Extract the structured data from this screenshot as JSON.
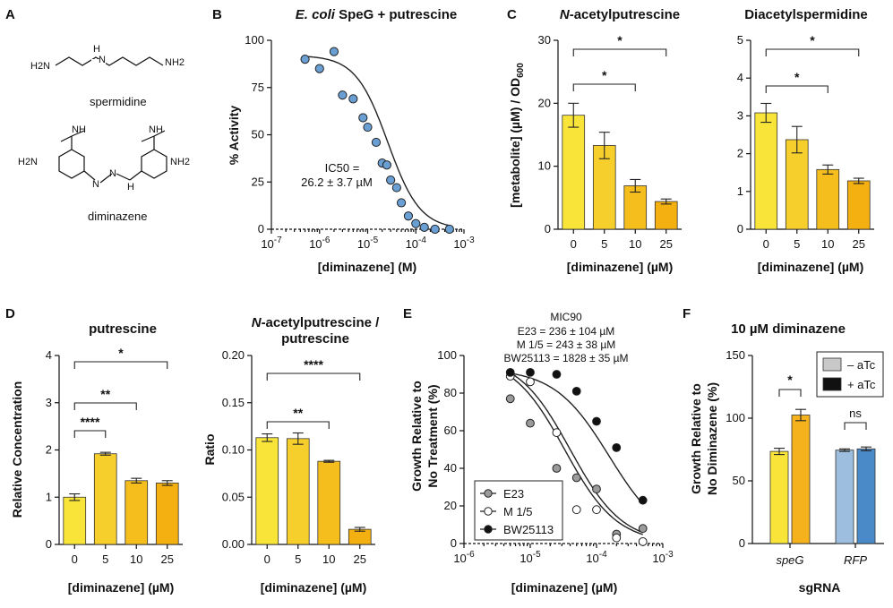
{
  "panels": {
    "A": {
      "letter": "A",
      "molecules": [
        "spermidine",
        "diminazene"
      ],
      "atoms": {
        "h2n": "H2N",
        "nh2": "NH2",
        "nh": "NH",
        "h": "H",
        "n": "N",
        "h2n_b": "H2N",
        "nh2_b": "NH2",
        "nh_a": "NH",
        "nh_b": "NH",
        "n1": "N",
        "n2": "N",
        "hn": "H"
      }
    },
    "B": {
      "letter": "B",
      "title_italic": "E. coli",
      "title_rest": " SpeG + putrescine",
      "ic50_line1": "IC50 =",
      "ic50_line2": "26.2 ± 3.7 µM"
    },
    "C": {
      "letter": "C"
    },
    "D": {
      "letter": "D"
    },
    "E": {
      "letter": "E",
      "mic_header": "MIC90",
      "mic_lines": [
        "E23 = 236 ± 104 µM",
        "M 1/5 = 243 ± 38 µM",
        "BW25113 = 1828 ± 35 µM"
      ]
    },
    "F": {
      "letter": "F"
    }
  },
  "chart_data": [
    {
      "id": "B",
      "type": "scatter",
      "title": "E. coli SpeG + putrescine",
      "xlabel": "[diminazene] (M)",
      "ylabel": "% Activity",
      "xscale": "log",
      "xlim": [
        1e-07,
        0.001
      ],
      "ylim": [
        0,
        100
      ],
      "xticks": [
        "10-7",
        "10-6",
        "10-5",
        "10-4",
        "10-3"
      ],
      "yticks": [
        0,
        25,
        50,
        75,
        100
      ],
      "x": [
        5e-07,
        1e-06,
        2e-06,
        3e-06,
        5e-06,
        8e-06,
        1e-05,
        1.5e-05,
        2e-05,
        2.5e-05,
        3e-05,
        4e-05,
        5e-05,
        7e-05,
        0.0001,
        0.00015,
        0.00025,
        0.0005
      ],
      "values": [
        90,
        85,
        94,
        71,
        69,
        59,
        54,
        46,
        35,
        34,
        26,
        22,
        14,
        7,
        3,
        1,
        0,
        0
      ],
      "fit": {
        "model": "4PL",
        "top": 92,
        "bottom": 0,
        "ic50": 2.62e-05,
        "hill": 1.3
      }
    },
    {
      "id": "C1",
      "type": "bar",
      "title": "N-acetylputrescine",
      "xlabel": "[diminazene] (µM)",
      "ylabel": "[metabolite] (µM) / OD600",
      "categories": [
        "0",
        "5",
        "10",
        "25"
      ],
      "values": [
        18.1,
        13.3,
        6.9,
        4.4
      ],
      "errors": [
        1.9,
        2.1,
        1.0,
        0.4
      ],
      "ylim": [
        0,
        30
      ],
      "yticks": [
        0,
        10,
        20,
        30
      ],
      "colors": [
        "#F9E53A",
        "#F7CF2C",
        "#F5BE1C",
        "#F4AF10"
      ],
      "significance": [
        {
          "from": "0",
          "to": "10",
          "label": "*"
        },
        {
          "from": "0",
          "to": "25",
          "label": "*"
        }
      ]
    },
    {
      "id": "C2",
      "type": "bar",
      "title": "Diacetylspermidine",
      "xlabel": "[diminazene] (µM)",
      "categories": [
        "0",
        "5",
        "10",
        "25"
      ],
      "values": [
        3.08,
        2.37,
        1.58,
        1.28
      ],
      "errors": [
        0.25,
        0.35,
        0.12,
        0.07
      ],
      "ylim": [
        0,
        5
      ],
      "yticks": [
        0,
        1,
        2,
        3,
        4,
        5
      ],
      "colors": [
        "#F9E53A",
        "#F7CF2C",
        "#F5BE1C",
        "#F4AF10"
      ],
      "significance": [
        {
          "from": "0",
          "to": "10",
          "label": "*"
        },
        {
          "from": "0",
          "to": "25",
          "label": "*"
        }
      ]
    },
    {
      "id": "D1",
      "type": "bar",
      "title": "putrescine",
      "xlabel": "[diminazene] (µM)",
      "ylabel": "Relative Concentration",
      "categories": [
        "0",
        "5",
        "10",
        "25"
      ],
      "values": [
        1.0,
        1.92,
        1.35,
        1.3
      ],
      "errors": [
        0.07,
        0.03,
        0.05,
        0.05
      ],
      "ylim": [
        0,
        4
      ],
      "yticks": [
        0,
        1,
        2,
        3,
        4
      ],
      "colors": [
        "#F9E53A",
        "#F7CF2C",
        "#F5BE1C",
        "#F4AF10"
      ],
      "significance": [
        {
          "from": "0",
          "to": "5",
          "label": "****"
        },
        {
          "from": "0",
          "to": "10",
          "label": "**"
        },
        {
          "from": "0",
          "to": "25",
          "label": "*"
        }
      ]
    },
    {
      "id": "D2",
      "type": "bar",
      "title_italic": "N",
      "title_rest": "-acetylputrescine /",
      "title_line2": "putrescine",
      "xlabel": "[diminazene] (µM)",
      "ylabel": "Ratio",
      "categories": [
        "0",
        "5",
        "10",
        "25"
      ],
      "values": [
        0.113,
        0.112,
        0.088,
        0.016
      ],
      "errors": [
        0.004,
        0.006,
        0.001,
        0.002
      ],
      "ylim": [
        0,
        0.2
      ],
      "yticks": [
        "0.00",
        "0.05",
        "0.10",
        "0.15",
        "0.20"
      ],
      "colors": [
        "#F9E53A",
        "#F7CF2C",
        "#F5BE1C",
        "#F4AF10"
      ],
      "significance": [
        {
          "from": "0",
          "to": "10",
          "label": "**"
        },
        {
          "from": "0",
          "to": "25",
          "label": "****"
        }
      ]
    },
    {
      "id": "E",
      "type": "scatter",
      "xlabel": "[diminazene] (µM)",
      "ylabel": "Growth Relative to No Treatment (%)",
      "xscale": "log",
      "xlim": [
        1e-06,
        0.001
      ],
      "ylim": [
        0,
        100
      ],
      "xticks": [
        "10-6",
        "10-5",
        "10-4",
        "10-3"
      ],
      "yticks": [
        0,
        20,
        40,
        60,
        80,
        100
      ],
      "legend": "bottom-left",
      "series": [
        {
          "name": "E23",
          "fill": "#9a9a9a",
          "x": [
            5e-06,
            1e-05,
            2.5e-05,
            5e-05,
            0.0001,
            0.0002,
            0.0005
          ],
          "values": [
            77,
            64,
            40,
            35,
            29,
            5,
            8
          ],
          "fit": {
            "top": 100,
            "ec50": 4e-05,
            "hill": 1.1
          }
        },
        {
          "name": "M 1/5",
          "fill": "#ffffff",
          "x": [
            5e-06,
            1e-05,
            2.5e-05,
            5e-05,
            0.0001,
            0.0002,
            0.0005
          ],
          "values": [
            89,
            86,
            59,
            18,
            18,
            3,
            1
          ],
          "fit": {
            "top": 100,
            "ec50": 3.3e-05,
            "hill": 1.1
          }
        },
        {
          "name": "BW25113",
          "fill": "#111111",
          "x": [
            5e-06,
            1e-05,
            2.5e-05,
            5e-05,
            0.0001,
            0.0002,
            0.0005
          ],
          "values": [
            91,
            91,
            90,
            81,
            65,
            51,
            23
          ],
          "fit": {
            "top": 93,
            "ec50": 0.000155,
            "hill": 1.05
          }
        }
      ]
    },
    {
      "id": "F",
      "type": "bar",
      "title": "10 µM diminazene",
      "xlabel": "sgRNA",
      "ylabel": "Growth Relative to No Diminazene (%)",
      "categories": [
        "speG",
        "RFP"
      ],
      "legend": "top-right",
      "series": [
        {
          "name": "– aTc",
          "values": [
            73.5,
            74.5
          ],
          "errors": [
            2.5,
            1.0
          ],
          "colors": [
            "#F9E53A",
            "#9DBEDE"
          ]
        },
        {
          "name": "+ aTc",
          "values": [
            102.5,
            75.5
          ],
          "errors": [
            4.5,
            1.5
          ],
          "colors": [
            "#F5B21C",
            "#4A8AC8"
          ]
        }
      ],
      "legend_colors": [
        "#c8c8c8",
        "#111111"
      ],
      "ylim": [
        0,
        150
      ],
      "yticks": [
        0,
        50,
        100,
        150
      ],
      "significance": [
        {
          "group": "speG",
          "label": "*"
        },
        {
          "group": "RFP",
          "label": "ns"
        }
      ]
    }
  ]
}
